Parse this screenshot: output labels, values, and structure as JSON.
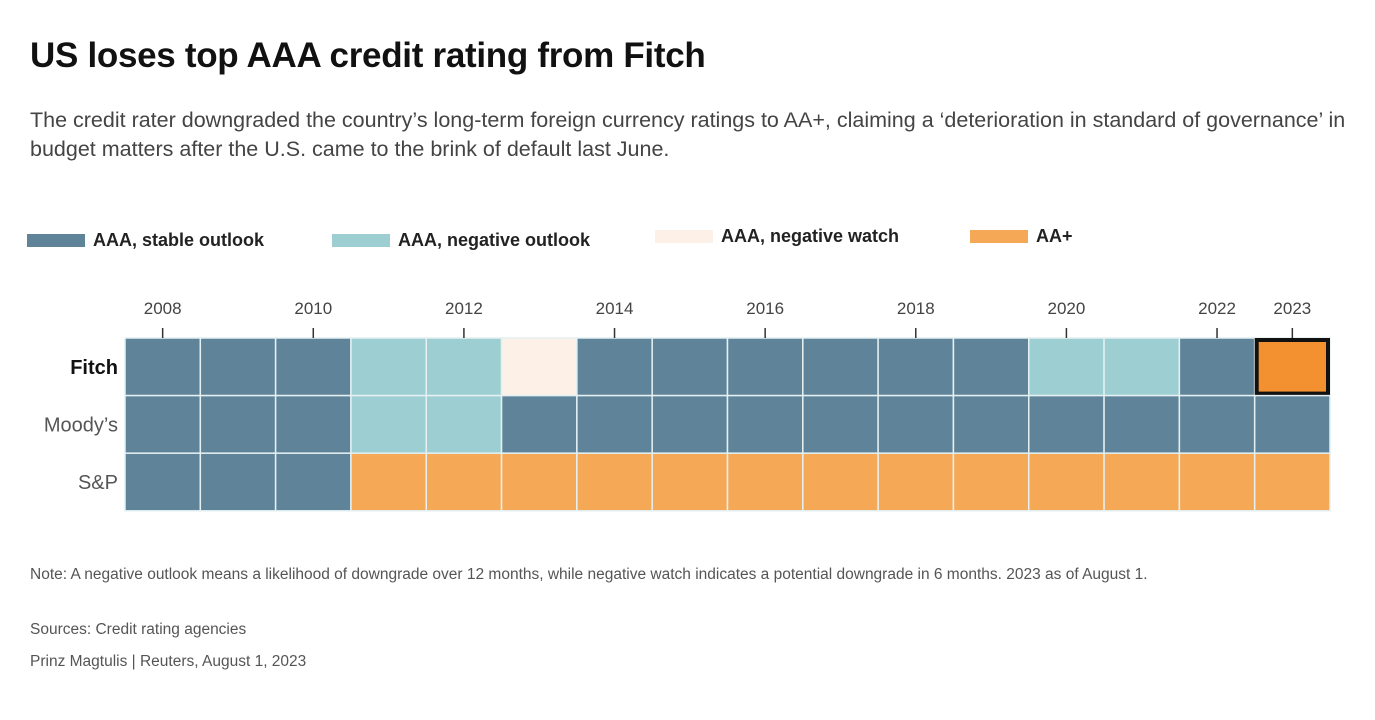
{
  "title": "US loses top AAA credit rating from Fitch",
  "subtitle": "The credit rater downgraded the country’s long-term foreign currency ratings to AA+, claiming a ‘deterioration in standard of governance’ in budget matters after the U.S. came to the brink of default last June.",
  "note": "Note: A negative outlook means a likelihood of downgrade over 12 months, while negative watch indicates a potential downgrade in 6 months. 2023 as of August 1.",
  "sources": "Sources: Credit rating agencies",
  "byline": "Prinz Magtulis | Reuters, August 1, 2023",
  "chart_data": {
    "type": "heatmap",
    "legend": [
      {
        "key": "stable",
        "label": "AAA, stable outlook",
        "color": "#5f8398"
      },
      {
        "key": "neg_outlook",
        "label": "AAA, negative outlook",
        "color": "#9dcfd2"
      },
      {
        "key": "neg_watch",
        "label": "AAA, negative watch",
        "color": "#fdf0e6"
      },
      {
        "key": "aa_plus",
        "label": "AA+",
        "color": "#f5a855"
      }
    ],
    "legend_placement": "top",
    "highlight_color": "#f39130",
    "years": [
      2008,
      2009,
      2010,
      2011,
      2012,
      2013,
      2014,
      2015,
      2016,
      2017,
      2018,
      2019,
      2020,
      2021,
      2022,
      2023
    ],
    "tick_labels": [
      "2008",
      "2010",
      "2012",
      "2014",
      "2016",
      "2018",
      "2020",
      "2022",
      "2023"
    ],
    "rows": [
      {
        "label": "Fitch",
        "bold": true,
        "highlight": "2023",
        "values": [
          "stable",
          "stable",
          "stable",
          "neg_outlook",
          "neg_outlook",
          "neg_watch",
          "stable",
          "stable",
          "stable",
          "stable",
          "stable",
          "stable",
          "neg_outlook",
          "neg_outlook",
          "stable",
          "aa_plus"
        ]
      },
      {
        "label": "Moody’s",
        "values": [
          "stable",
          "stable",
          "stable",
          "neg_outlook",
          "neg_outlook",
          "stable",
          "stable",
          "stable",
          "stable",
          "stable",
          "stable",
          "stable",
          "stable",
          "stable",
          "stable",
          "stable"
        ]
      },
      {
        "label": "S&P",
        "values": [
          "stable",
          "stable",
          "stable",
          "aa_plus",
          "aa_plus",
          "aa_plus",
          "aa_plus",
          "aa_plus",
          "aa_plus",
          "aa_plus",
          "aa_plus",
          "aa_plus",
          "aa_plus",
          "aa_plus",
          "aa_plus",
          "aa_plus"
        ]
      }
    ]
  }
}
